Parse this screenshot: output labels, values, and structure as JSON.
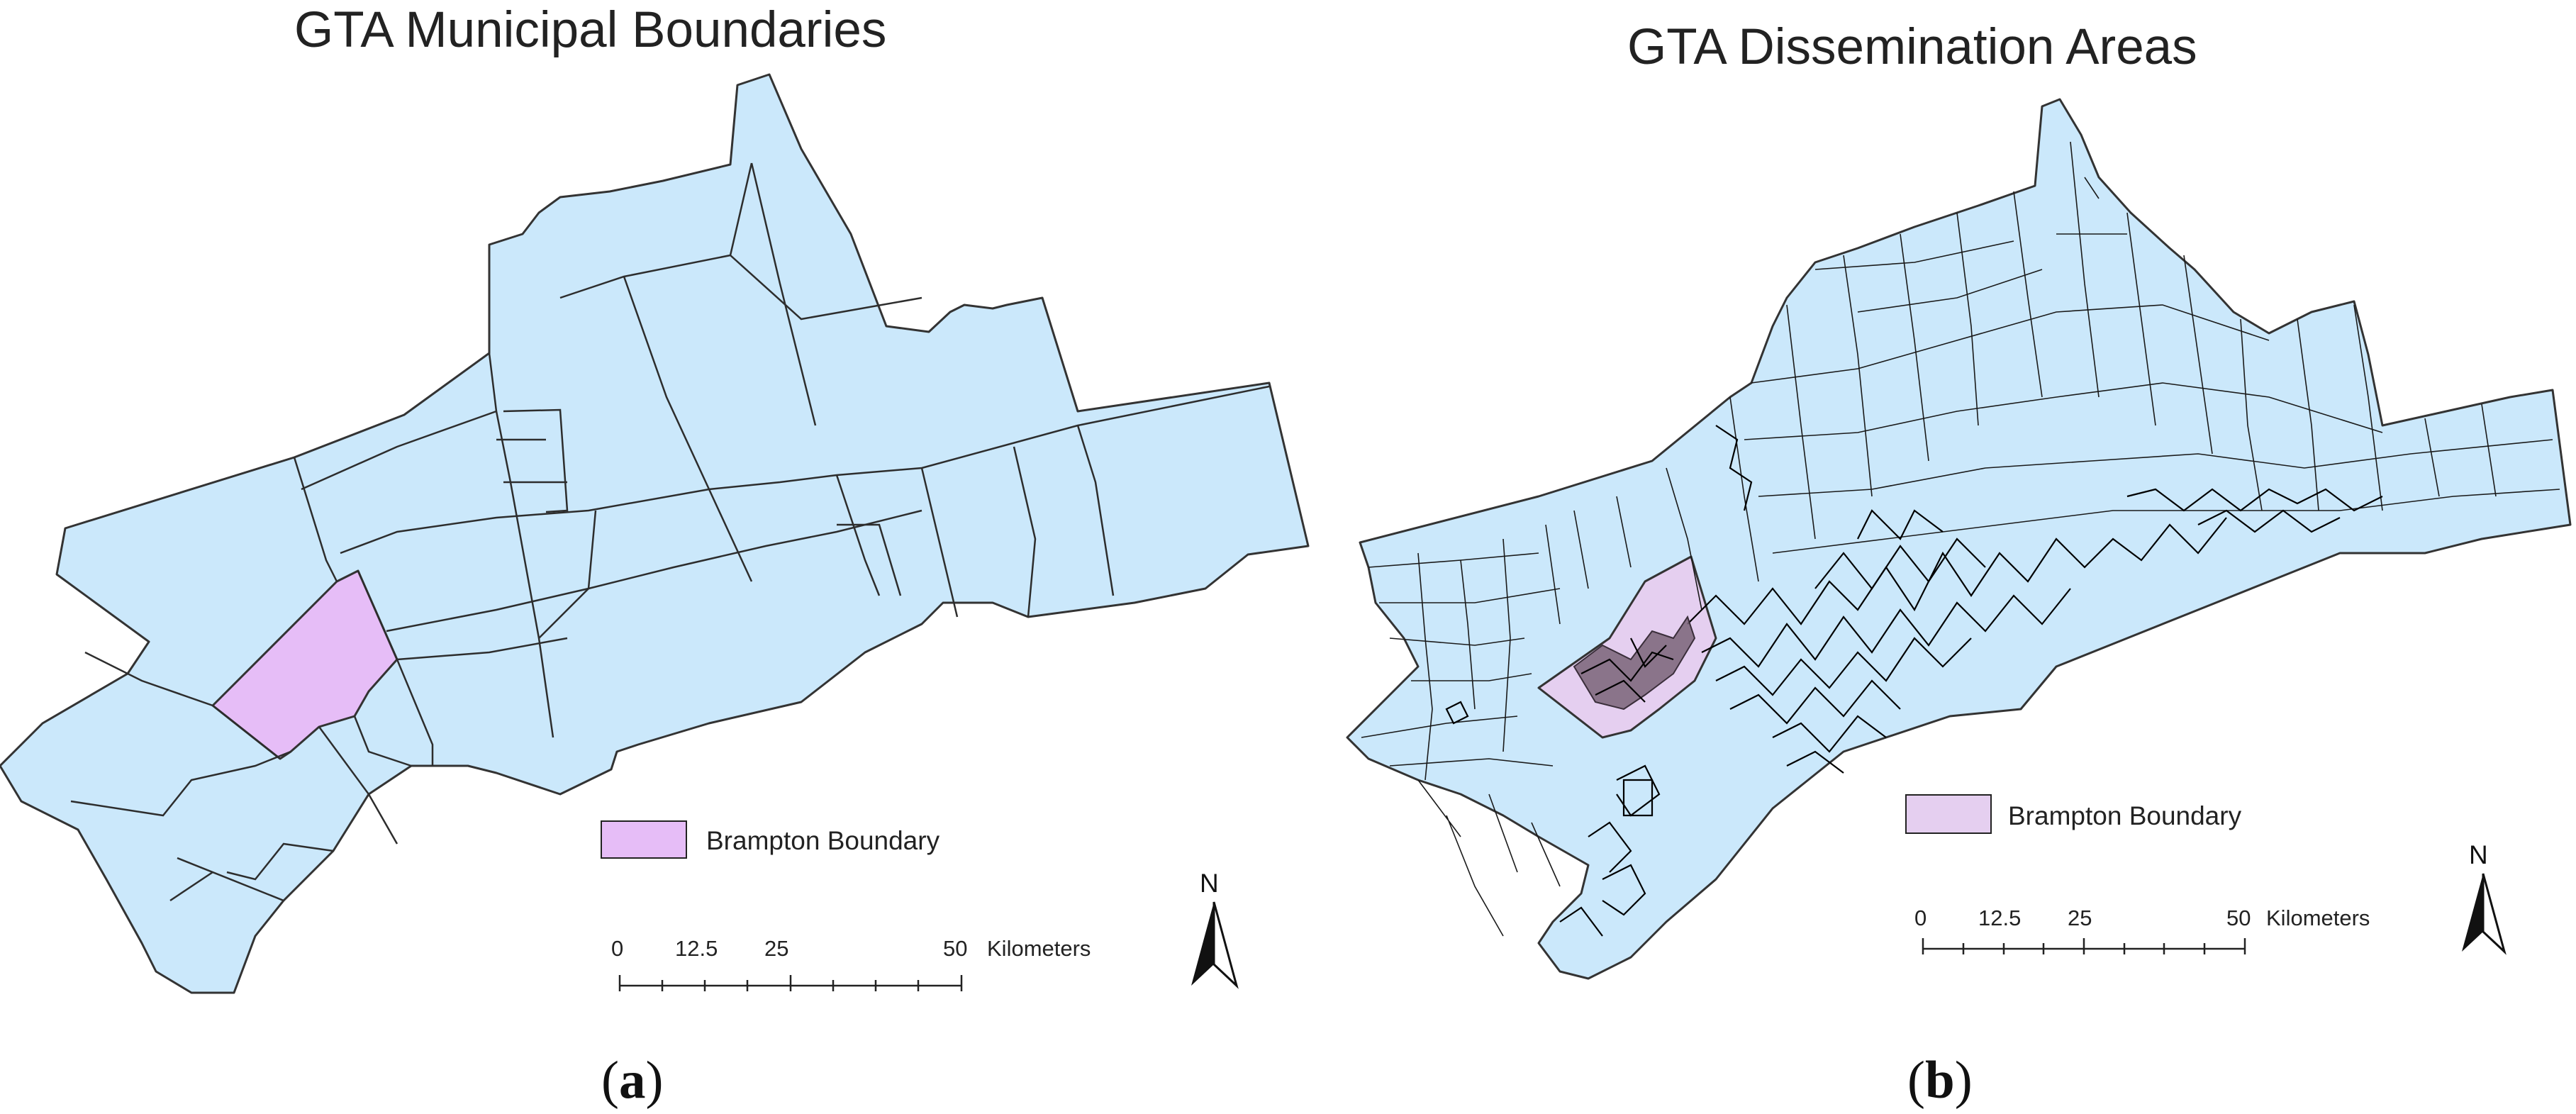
{
  "colors": {
    "land": "#cbe8fb",
    "highlight_a": "#e6bdf7",
    "highlight_b": "#e5cff0",
    "boundary": "#333333",
    "background": "#ffffff"
  },
  "map_a": {
    "title": "GTA Municipal Boundaries",
    "legend_label": "Brampton Boundary",
    "scale": {
      "ticks": [
        "0",
        "12.5",
        "25",
        "50"
      ],
      "unit": "Kilometers"
    },
    "north_label": "N",
    "caption_letter": "a"
  },
  "map_b": {
    "title": "GTA Dissemination Areas",
    "legend_label": "Brampton Boundary",
    "scale": {
      "ticks": [
        "0",
        "12.5",
        "25",
        "50"
      ],
      "unit": "Kilometers"
    },
    "north_label": "N",
    "caption_letter": "b"
  }
}
